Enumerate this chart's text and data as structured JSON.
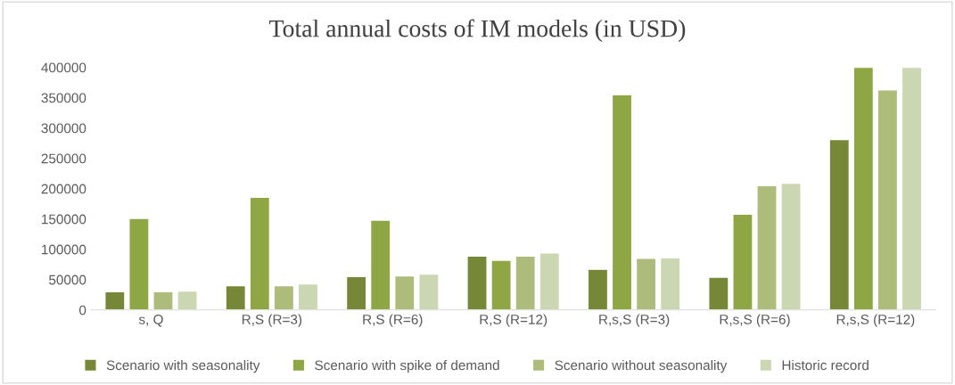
{
  "chart_data": {
    "type": "bar",
    "title": "Total annual costs of IM models (in USD)",
    "categories": [
      "s, Q",
      "R,S (R=3)",
      "R,S (R=6)",
      "R,S (R=12)",
      "R,s,S (R=3)",
      "R,s,S (R=6)",
      "R,s,S (R=12)"
    ],
    "series": [
      {
        "name": "Scenario with seasonality",
        "color": "#768838",
        "values": [
          30000,
          40000,
          55000,
          89000,
          67000,
          54000,
          281000
        ]
      },
      {
        "name": "Scenario with spike of demand",
        "color": "#8fa645",
        "values": [
          151000,
          186000,
          148000,
          82000,
          355000,
          158000,
          400000
        ]
      },
      {
        "name": "Scenario without seasonality",
        "color": "#adbc7b",
        "values": [
          30000,
          40000,
          56000,
          89000,
          85000,
          205000,
          363000
        ]
      },
      {
        "name": "Historic record",
        "color": "#cbd6b2",
        "values": [
          31000,
          43000,
          59000,
          94000,
          86000,
          209000,
          400000
        ]
      }
    ],
    "ylim": [
      0,
      400000
    ],
    "yticks": [
      0,
      50000,
      100000,
      150000,
      200000,
      250000,
      300000,
      350000,
      400000
    ],
    "grid": false,
    "legend": "bottom"
  }
}
